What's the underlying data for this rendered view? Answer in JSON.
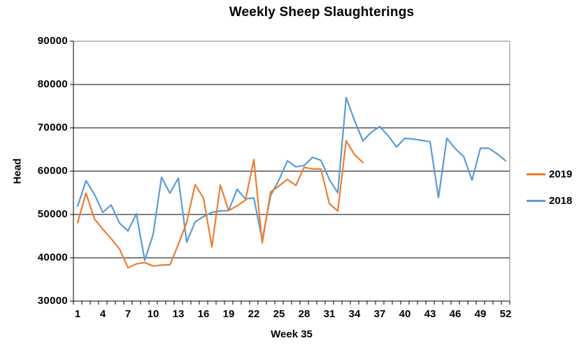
{
  "title": "Weekly Sheep Slaughterings",
  "chart_data": {
    "type": "line",
    "title": "Weekly Sheep Slaughterings",
    "xlabel": "Week 35",
    "ylabel": "Head",
    "x_axis": {
      "min_week": 1,
      "max_week": 52,
      "tick_labels": [
        1,
        4,
        7,
        10,
        13,
        16,
        19,
        22,
        25,
        28,
        31,
        34,
        37,
        40,
        43,
        46,
        49,
        52
      ]
    },
    "y_axis": {
      "min": 30000,
      "max": 90000,
      "tick_labels": [
        30000,
        40000,
        50000,
        60000,
        70000,
        80000,
        90000
      ]
    },
    "grid": "horizontal",
    "legend_position": "right",
    "colors": {
      "accent_2019": "#ED7D31",
      "accent_2018": "#5B9BD5",
      "gridline": "#000000",
      "border": "#7F7F7F"
    },
    "series": [
      {
        "name": "2019",
        "color": "#ED7D31",
        "start_week": 1,
        "values": [
          48100,
          54900,
          49000,
          46600,
          44400,
          42000,
          37700,
          38600,
          38900,
          38100,
          38300,
          38400,
          43100,
          48200,
          56900,
          53800,
          42500,
          56800,
          50900,
          52000,
          53300,
          62700,
          43400,
          55200,
          56600,
          58100,
          56700,
          60900,
          60500,
          60500,
          52500,
          50800,
          67000,
          63800,
          62000
        ]
      },
      {
        "name": "2018",
        "color": "#5B9BD5",
        "start_week": 1,
        "values": [
          51900,
          57800,
          54700,
          50500,
          52200,
          48000,
          46200,
          50200,
          39400,
          45400,
          58600,
          54900,
          58400,
          43600,
          48300,
          49500,
          50500,
          50800,
          50900,
          55800,
          53600,
          53800,
          44100,
          54400,
          58000,
          62400,
          61000,
          61300,
          63200,
          62500,
          58100,
          55000,
          77000,
          71700,
          67000,
          69000,
          70300,
          68200,
          65600,
          67600,
          67400,
          67100,
          66800,
          53900,
          67600,
          65200,
          63400,
          57900,
          65300,
          65300,
          64000,
          62400
        ]
      }
    ]
  }
}
